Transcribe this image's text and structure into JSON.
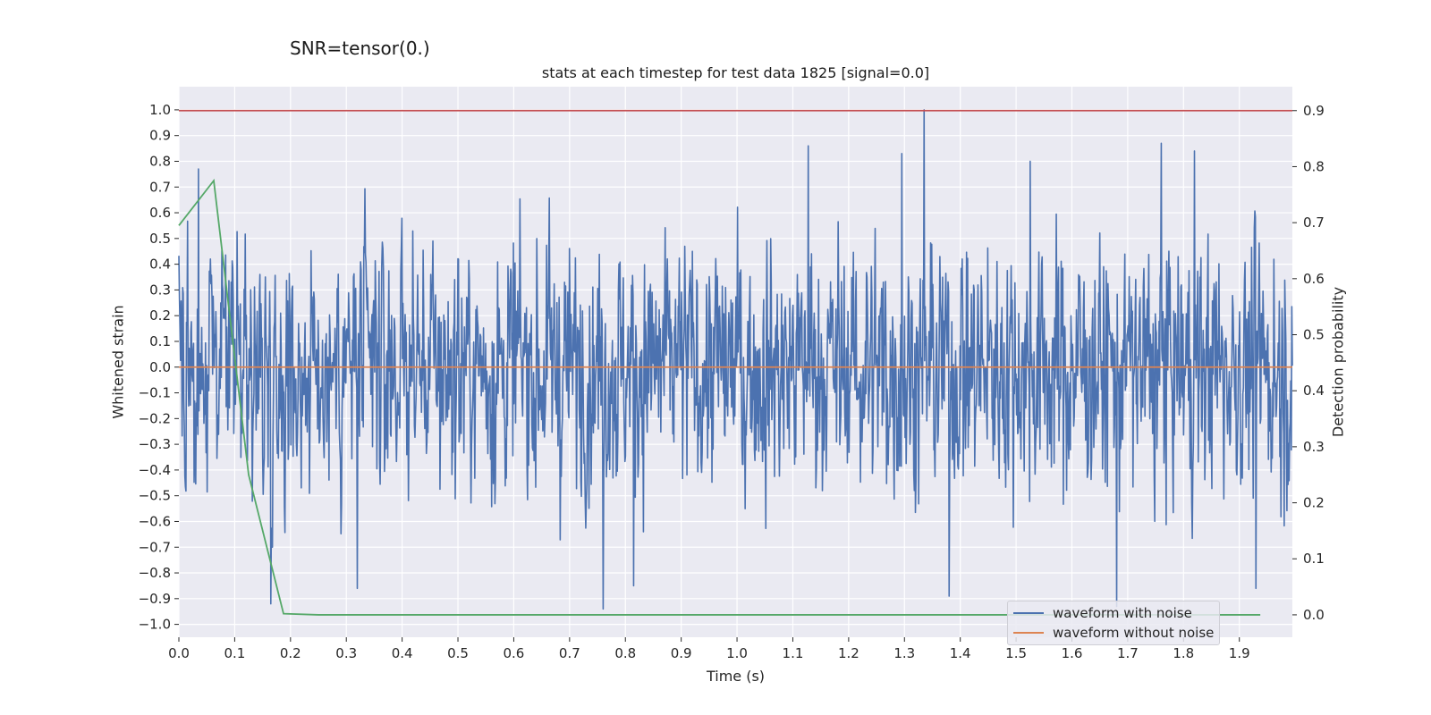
{
  "suptitle": "SNR=tensor(0.)",
  "chart_data": {
    "type": "line",
    "title": "stats at each timestep for test data 1825 [signal=0.0]",
    "xlabel": "Time (s)",
    "ylabel": "Whitened strain",
    "ylabel_right": "Detection probability",
    "xlim": [
      0.0,
      1.995
    ],
    "ylim": [
      -1.05,
      1.09
    ],
    "ylim_right": [
      -0.04,
      0.9427
    ],
    "x_ticks": [
      "0.0",
      "0.1",
      "0.2",
      "0.3",
      "0.4",
      "0.5",
      "0.6",
      "0.7",
      "0.8",
      "0.9",
      "1.0",
      "1.1",
      "1.2",
      "1.3",
      "1.4",
      "1.5",
      "1.6",
      "1.7",
      "1.8",
      "1.9"
    ],
    "y_ticks": [
      "−1.0",
      "−0.9",
      "−0.8",
      "−0.7",
      "−0.6",
      "−0.5",
      "−0.4",
      "−0.3",
      "−0.2",
      "−0.1",
      "0.0",
      "0.1",
      "0.2",
      "0.3",
      "0.4",
      "0.5",
      "0.6",
      "0.7",
      "0.8",
      "0.9",
      "1.0"
    ],
    "y_ticks_right": [
      "0.0",
      "0.1",
      "0.2",
      "0.3",
      "0.4",
      "0.5",
      "0.6",
      "0.7",
      "0.8",
      "0.9"
    ],
    "grid": true,
    "legend_position": "lower-right",
    "series": [
      {
        "name": "waveform with noise",
        "color": "#4c72b0",
        "axis": "left",
        "description_type": "noise",
        "x_range": [
          0.0,
          1.995
        ],
        "num_points": 2048,
        "spikes": [
          {
            "x": 1.335,
            "y": 1.0
          },
          {
            "x": 1.128,
            "y": 0.86
          },
          {
            "x": 1.82,
            "y": 0.84
          },
          {
            "x": 1.295,
            "y": 0.83
          },
          {
            "x": 1.76,
            "y": 0.87
          },
          {
            "x": 0.035,
            "y": 0.77
          },
          {
            "x": 0.76,
            "y": -0.94
          },
          {
            "x": 1.38,
            "y": -0.89
          },
          {
            "x": 1.68,
            "y": -0.93
          },
          {
            "x": 0.165,
            "y": -0.92
          },
          {
            "x": 0.32,
            "y": -0.86
          },
          {
            "x": 0.815,
            "y": -0.85
          },
          {
            "x": 1.93,
            "y": -0.86
          },
          {
            "x": 1.525,
            "y": 0.8
          }
        ]
      },
      {
        "name": "waveform without noise",
        "color": "#dd8452",
        "axis": "left",
        "x": [
          0.0,
          1.995
        ],
        "y": [
          0.0,
          0.0
        ]
      },
      {
        "name": "",
        "color": "#55a868",
        "axis": "right",
        "x": [
          0.0,
          0.0625,
          0.125,
          0.1875,
          0.25,
          0.5,
          1.0,
          1.5,
          1.9375
        ],
        "y": [
          0.695,
          0.775,
          0.25,
          0.002,
          0.0,
          0.0,
          0.0,
          0.0,
          0.0
        ]
      },
      {
        "name": "",
        "color": "#c44e52",
        "axis": "right",
        "x": [
          0.0,
          1.995
        ],
        "y": [
          0.9,
          0.9
        ]
      }
    ]
  }
}
